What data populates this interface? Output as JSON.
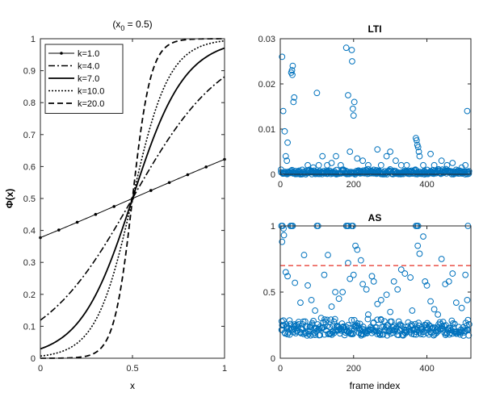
{
  "chart_data": [
    {
      "type": "line",
      "title": "(x0 = 0.5)",
      "title_parts": {
        "prefix": "(x",
        "subscript": "0",
        "suffix": " = 0.5)"
      },
      "xlabel": "x",
      "ylabel": "Φ(x)",
      "xlim": [
        0,
        1
      ],
      "ylim": [
        0,
        1
      ],
      "xticks": [
        "0",
        "0.5",
        "1"
      ],
      "yticks": [
        "0",
        "0.1",
        "0.2",
        "0.3",
        "0.4",
        "0.5",
        "0.6",
        "0.7",
        "0.8",
        "0.9",
        "1"
      ],
      "x0": 0.5,
      "legend_position": "top-left",
      "series": [
        {
          "name": "k=1.0",
          "k": 1.0,
          "style": "solid-dot"
        },
        {
          "name": "k=4.0",
          "k": 4.0,
          "style": "dashdot"
        },
        {
          "name": "k=7.0",
          "k": 7.0,
          "style": "solid-thick"
        },
        {
          "name": "k=10.0",
          "k": 10.0,
          "style": "dotted"
        },
        {
          "name": "k=20.0",
          "k": 20.0,
          "style": "dashed"
        }
      ]
    },
    {
      "type": "scatter",
      "title": "LTI",
      "xlabel": "",
      "ylabel": "",
      "xlim": [
        0,
        520
      ],
      "ylim": [
        0,
        0.03
      ],
      "xticks": [
        "0",
        "200",
        "400"
      ],
      "yticks": [
        "0",
        "0.01",
        "0.02",
        "0.03"
      ],
      "color": "#0072BD",
      "points": [
        [
          5,
          0.026
        ],
        [
          8,
          0.014
        ],
        [
          12,
          0.0095
        ],
        [
          15,
          0.004
        ],
        [
          18,
          0.003
        ],
        [
          20,
          0.007
        ],
        [
          30,
          0.0225
        ],
        [
          32,
          0.023
        ],
        [
          34,
          0.024
        ],
        [
          33,
          0.022
        ],
        [
          36,
          0.016
        ],
        [
          38,
          0.017
        ],
        [
          60,
          0.001
        ],
        [
          75,
          0.002
        ],
        [
          90,
          0.0015
        ],
        [
          100,
          0.018
        ],
        [
          105,
          0.002
        ],
        [
          115,
          0.004
        ],
        [
          128,
          0.002
        ],
        [
          140,
          0.0025
        ],
        [
          152,
          0.004
        ],
        [
          165,
          0.002
        ],
        [
          180,
          0.028
        ],
        [
          185,
          0.0175
        ],
        [
          190,
          0.005
        ],
        [
          195,
          0.0275
        ],
        [
          196,
          0.025
        ],
        [
          198,
          0.0145
        ],
        [
          200,
          0.013
        ],
        [
          202,
          0.016
        ],
        [
          210,
          0.0035
        ],
        [
          225,
          0.003
        ],
        [
          240,
          0.002
        ],
        [
          255,
          0.001
        ],
        [
          265,
          0.0055
        ],
        [
          275,
          0.002
        ],
        [
          290,
          0.004
        ],
        [
          300,
          0.005
        ],
        [
          315,
          0.003
        ],
        [
          330,
          0.002
        ],
        [
          345,
          0.002
        ],
        [
          370,
          0.008
        ],
        [
          372,
          0.0075
        ],
        [
          374,
          0.0065
        ],
        [
          376,
          0.006
        ],
        [
          378,
          0.005
        ],
        [
          380,
          0.004
        ],
        [
          390,
          0.002
        ],
        [
          410,
          0.0045
        ],
        [
          420,
          0.002
        ],
        [
          440,
          0.003
        ],
        [
          455,
          0.002
        ],
        [
          470,
          0.0025
        ],
        [
          480,
          0.001
        ],
        [
          495,
          0.0015
        ],
        [
          510,
          0.014
        ],
        [
          505,
          0.002
        ]
      ],
      "baseline_band": [
        0,
        0.0012
      ]
    },
    {
      "type": "scatter",
      "title": "AS",
      "xlabel": "frame index",
      "ylabel": "",
      "xlim": [
        0,
        520
      ],
      "ylim": [
        0,
        1
      ],
      "xticks": [
        "0",
        "200",
        "400"
      ],
      "yticks": [
        "0",
        "0.5",
        "1"
      ],
      "color": "#0072BD",
      "threshold": {
        "y": 0.7,
        "color": "#E8433A"
      },
      "points": [
        [
          3,
          1
        ],
        [
          6,
          1
        ],
        [
          9,
          0.98
        ],
        [
          28,
          1
        ],
        [
          31,
          1
        ],
        [
          34,
          1
        ],
        [
          100,
          1
        ],
        [
          103,
          1
        ],
        [
          180,
          1
        ],
        [
          183,
          1
        ],
        [
          186,
          1
        ],
        [
          195,
          1
        ],
        [
          198,
          1
        ],
        [
          370,
          1
        ],
        [
          373,
          1
        ],
        [
          376,
          1
        ],
        [
          512,
          1
        ],
        [
          5,
          0.88
        ],
        [
          10,
          0.93
        ],
        [
          15,
          0.65
        ],
        [
          20,
          0.62
        ],
        [
          40,
          0.57
        ],
        [
          55,
          0.42
        ],
        [
          65,
          0.78
        ],
        [
          75,
          0.55
        ],
        [
          85,
          0.44
        ],
        [
          95,
          0.36
        ],
        [
          120,
          0.63
        ],
        [
          130,
          0.78
        ],
        [
          140,
          0.39
        ],
        [
          150,
          0.5
        ],
        [
          160,
          0.45
        ],
        [
          170,
          0.5
        ],
        [
          185,
          0.72
        ],
        [
          190,
          0.6
        ],
        [
          200,
          0.63
        ],
        [
          205,
          0.85
        ],
        [
          210,
          0.82
        ],
        [
          220,
          0.74
        ],
        [
          225,
          0.56
        ],
        [
          235,
          0.52
        ],
        [
          240,
          0.33
        ],
        [
          250,
          0.62
        ],
        [
          255,
          0.58
        ],
        [
          265,
          0.41
        ],
        [
          275,
          0.44
        ],
        [
          290,
          0.48
        ],
        [
          300,
          0.35
        ],
        [
          310,
          0.58
        ],
        [
          320,
          0.52
        ],
        [
          330,
          0.67
        ],
        [
          340,
          0.64
        ],
        [
          355,
          0.61
        ],
        [
          360,
          0.36
        ],
        [
          375,
          0.85
        ],
        [
          380,
          0.79
        ],
        [
          390,
          0.92
        ],
        [
          395,
          0.58
        ],
        [
          400,
          0.55
        ],
        [
          410,
          0.43
        ],
        [
          420,
          0.37
        ],
        [
          430,
          0.33
        ],
        [
          440,
          0.75
        ],
        [
          450,
          0.56
        ],
        [
          460,
          0.58
        ],
        [
          470,
          0.64
        ],
        [
          480,
          0.42
        ],
        [
          495,
          0.38
        ],
        [
          505,
          0.63
        ],
        [
          510,
          0.44
        ]
      ],
      "baseline_band": [
        0.17,
        0.32
      ]
    }
  ]
}
